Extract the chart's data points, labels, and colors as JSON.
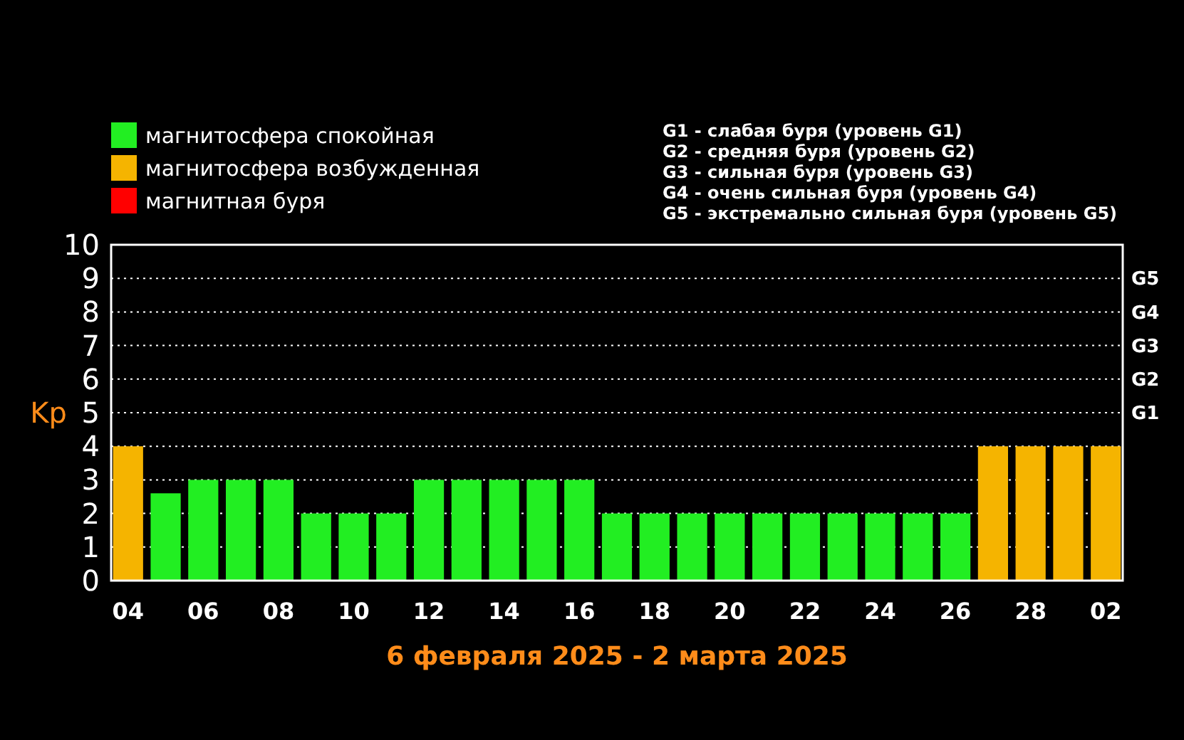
{
  "chart_data": {
    "type": "bar",
    "xlabel": "6 февраля 2025 - 2 марта 2025",
    "ylabel": "Kp",
    "categories": [
      "04",
      null,
      "06",
      null,
      "08",
      null,
      "10",
      null,
      "12",
      null,
      "14",
      null,
      "16",
      null,
      "18",
      null,
      "20",
      null,
      "22",
      null,
      "24",
      null,
      "26",
      null,
      "28",
      null,
      "02"
    ],
    "series": [
      {
        "name": "магнитосфера спокойная",
        "color": "#22ee22",
        "values": [
          null,
          2.6,
          3,
          3,
          3,
          2,
          2,
          2,
          3,
          3,
          3,
          3,
          3,
          2,
          2,
          2,
          2,
          2,
          2,
          2,
          2,
          2,
          2,
          null,
          null,
          null,
          null
        ]
      },
      {
        "name": "магнитосфера возбужденная",
        "color": "#f5b400",
        "values": [
          4,
          null,
          null,
          null,
          null,
          null,
          null,
          null,
          null,
          null,
          null,
          null,
          null,
          null,
          null,
          null,
          null,
          null,
          null,
          null,
          null,
          null,
          null,
          4,
          4,
          4,
          4
        ]
      },
      {
        "name": "магнитная буря",
        "color": "#ff0000",
        "values": [
          null,
          null,
          null,
          null,
          null,
          null,
          null,
          null,
          null,
          null,
          null,
          null,
          null,
          null,
          null,
          null,
          null,
          null,
          null,
          null,
          null,
          null,
          null,
          null,
          null,
          null,
          null
        ]
      }
    ],
    "ylim": [
      0,
      10
    ],
    "yticks": [
      0,
      1,
      2,
      3,
      4,
      5,
      6,
      7,
      8,
      9,
      10
    ],
    "grid": "y",
    "legend": "top left",
    "annotations": [
      "G1",
      "G2",
      "G3",
      "G4",
      "G5",
      "G1 - слабая буря (уровень G1)",
      "G2 - средняя буря (уровень G2)",
      "G3 - сильная буря (уровень G3)",
      "G4 - очень сильная буря (уровень G4)",
      "G5 - экстремально сильная буря (уровень G5)"
    ]
  }
}
